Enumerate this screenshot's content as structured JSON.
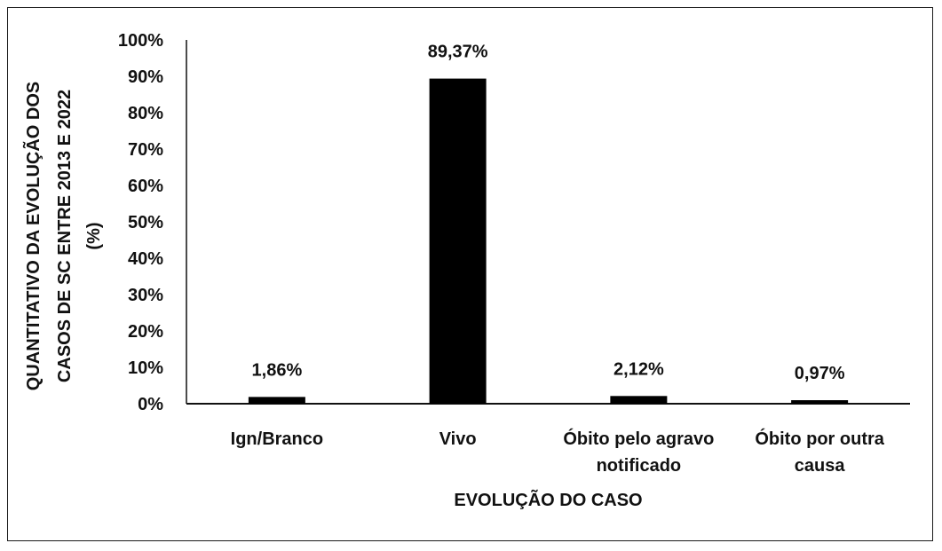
{
  "chart_data": {
    "type": "bar",
    "categories": [
      [
        "Ign/Branco"
      ],
      [
        "Vivo"
      ],
      [
        "Óbito pelo agravo",
        "notificado"
      ],
      [
        "Óbito por outra",
        "causa"
      ]
    ],
    "values": [
      1.86,
      89.37,
      2.12,
      0.97
    ],
    "data_labels": [
      "1,86%",
      "89,37%",
      "2,12%",
      "0,97%"
    ],
    "ylim": [
      0,
      100
    ],
    "yticks": [
      0,
      10,
      20,
      30,
      40,
      50,
      60,
      70,
      80,
      90,
      100
    ],
    "ytick_labels": [
      "0%",
      "10%",
      "20%",
      "30%",
      "40%",
      "50%",
      "60%",
      "70%",
      "80%",
      "90%",
      "100%"
    ],
    "xlabel": "EVOLUÇÃO DO CASO",
    "ylabel_lines": [
      "QUANTITATIVO  DA EVOLUÇÃO DOS",
      "CASOS DE SC  ENTRE 2013 E 2022",
      "(%)"
    ],
    "bar_color": "#000000",
    "grid": false,
    "legend": "none"
  }
}
